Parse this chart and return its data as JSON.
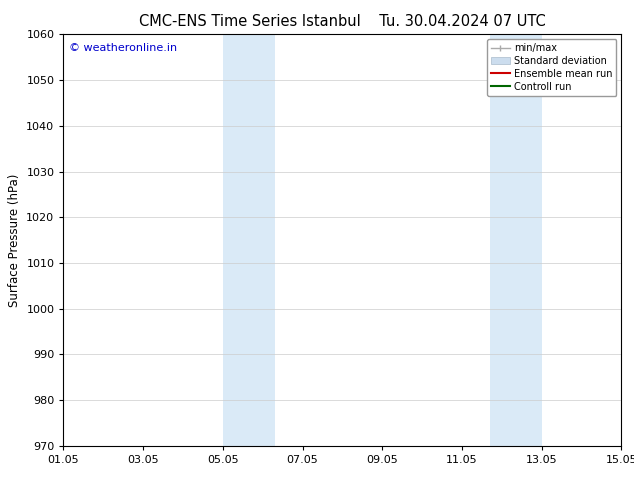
{
  "title_left": "CMC-ENS Time Series Istanbul",
  "title_right": "Tu. 30.04.2024 07 UTC",
  "ylabel": "Surface Pressure (hPa)",
  "ylim": [
    970,
    1060
  ],
  "yticks": [
    970,
    980,
    990,
    1000,
    1010,
    1020,
    1030,
    1040,
    1050,
    1060
  ],
  "xlim": [
    0,
    14
  ],
  "xtick_labels": [
    "01.05",
    "03.05",
    "05.05",
    "07.05",
    "09.05",
    "11.05",
    "13.05",
    "15.05"
  ],
  "xtick_positions": [
    0,
    2,
    4,
    6,
    8,
    10,
    12,
    14
  ],
  "shade_bands": [
    {
      "x_start": 4.0,
      "x_end": 5.3,
      "color": "#daeaf7"
    },
    {
      "x_start": 10.7,
      "x_end": 12.0,
      "color": "#daeaf7"
    }
  ],
  "watermark_text": "© weatheronline.in",
  "watermark_color": "#0000cc",
  "legend_items": [
    {
      "label": "min/max",
      "color": "#aaaaaa",
      "lw": 1.0,
      "style": "minmax"
    },
    {
      "label": "Standard deviation",
      "color": "#ccddee",
      "lw": 8,
      "style": "bar"
    },
    {
      "label": "Ensemble mean run",
      "color": "#cc0000",
      "lw": 1.5,
      "style": "line"
    },
    {
      "label": "Controll run",
      "color": "#006600",
      "lw": 1.5,
      "style": "line"
    }
  ],
  "background_color": "#ffffff",
  "plot_bg_color": "#ffffff",
  "grid_color": "#cccccc",
  "tick_fontsize": 8,
  "title_fontsize": 10.5,
  "label_fontsize": 8.5
}
